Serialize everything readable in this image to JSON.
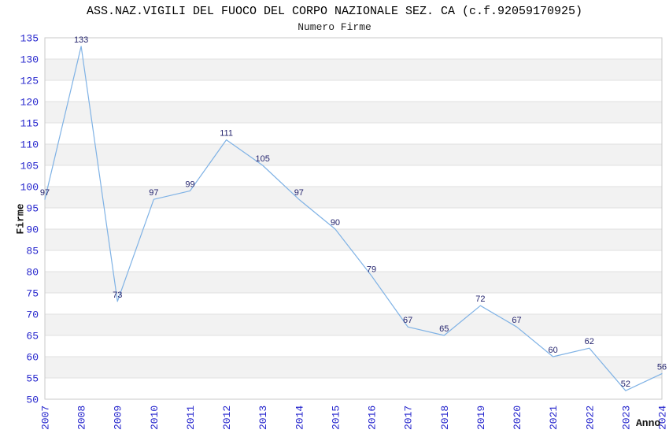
{
  "chart_data": {
    "type": "line",
    "title": "ASS.NAZ.VIGILI DEL FUOCO DEL CORPO NAZIONALE SEZ. CA (c.f.92059170925)",
    "subtitle": "Numero Firme",
    "xlabel": "Anno",
    "ylabel": "Firme",
    "categories": [
      "2007",
      "2008",
      "2009",
      "2010",
      "2011",
      "2012",
      "2013",
      "2014",
      "2015",
      "2016",
      "2017",
      "2018",
      "2019",
      "2020",
      "2021",
      "2022",
      "2023",
      "2024"
    ],
    "values": [
      97,
      133,
      73,
      97,
      99,
      111,
      105,
      97,
      90,
      79,
      67,
      65,
      72,
      67,
      60,
      62,
      52,
      56
    ],
    "ylim": [
      50,
      135
    ],
    "ytick_step": 5,
    "yticks": [
      50,
      55,
      60,
      65,
      70,
      75,
      80,
      85,
      90,
      95,
      100,
      105,
      110,
      115,
      120,
      125,
      130,
      135
    ],
    "grid": "horizontal-bands",
    "legend_position": "none",
    "point_labels_visible": true,
    "colors": {
      "line": "#7fb2e5",
      "tick_label": "#2222cc",
      "point_label": "#24246e",
      "band": "#f2f2f2",
      "gridline": "#e0e0e0",
      "plot_border": "#c9c9c9",
      "title": "#000000",
      "axis_title": "#111111",
      "background": "#ffffff"
    }
  }
}
